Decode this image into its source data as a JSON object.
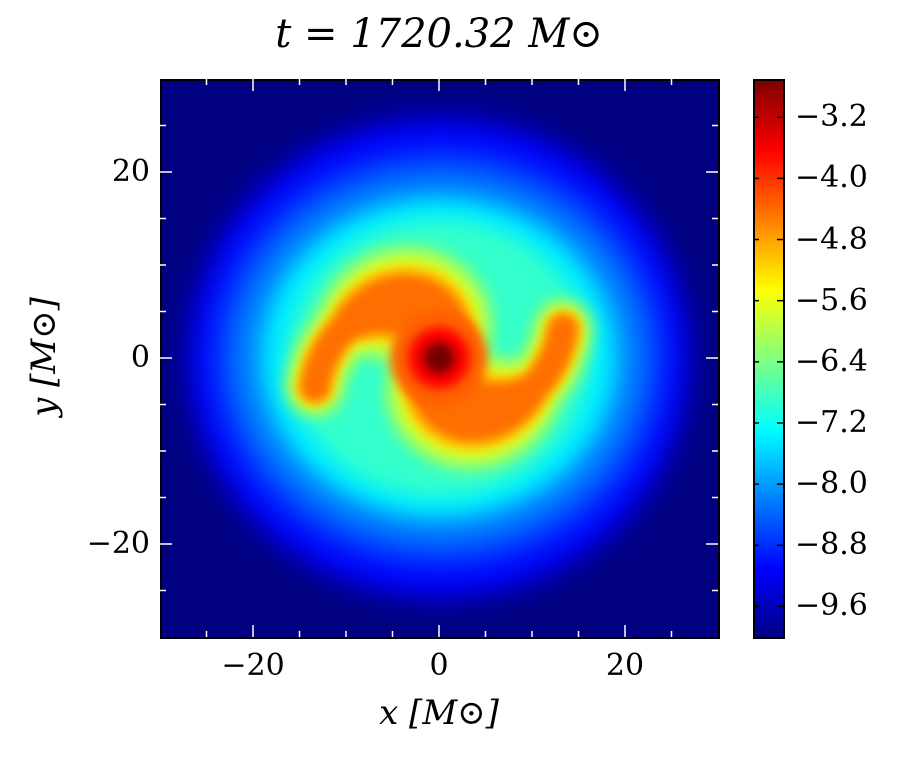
{
  "chart_data": {
    "type": "heatmap",
    "title": "t = 1720.32 M⊙",
    "xlabel": "x [M⊙]",
    "ylabel": "y [M⊙]",
    "xlim": [
      -30,
      30
    ],
    "ylim": [
      -30,
      30
    ],
    "xticks": [
      -20,
      0,
      20
    ],
    "xtick_labels": [
      "−20",
      "0",
      "20"
    ],
    "yticks": [
      -20,
      0,
      20
    ],
    "ytick_labels": [
      "−20",
      "0",
      "20"
    ],
    "colormap": "jet",
    "colorbar": {
      "range": [
        -10.0,
        -2.7
      ],
      "ticks": [
        -3.2,
        -4.0,
        -4.8,
        -5.6,
        -6.4,
        -7.2,
        -8.0,
        -8.8,
        -9.6
      ],
      "tick_labels": [
        "−3.2",
        "−4.0",
        "−4.8",
        "−5.6",
        "−6.4",
        "−7.2",
        "−8.0",
        "−8.8",
        "−9.6"
      ],
      "placement": "right"
    },
    "features": {
      "center": [
        0,
        0
      ],
      "center_value": -2.8,
      "spiral_arms": 2,
      "arm_peak_value": -4.3,
      "disk_outer_value": -8.8,
      "background_value": -10.0,
      "disk_radius": 27
    }
  }
}
